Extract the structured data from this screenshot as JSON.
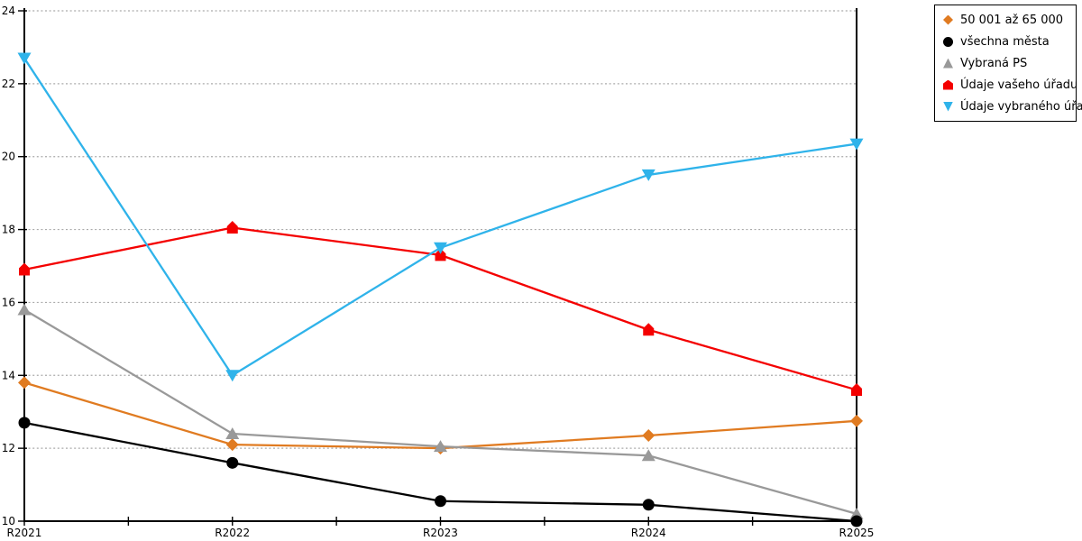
{
  "chart_data": {
    "type": "line",
    "title": "",
    "xlabel": "",
    "ylabel": "",
    "x_categories": [
      "R2021",
      "R2022",
      "R2023",
      "R2024",
      "R2025"
    ],
    "y_ticks": [
      10,
      12,
      14,
      16,
      18,
      20,
      22,
      24
    ],
    "ylim": [
      10,
      24
    ],
    "grid": "horizontal-dotted",
    "grid_color": "#aaaaaa",
    "axis_color": "#000000",
    "legend_position": "top-right-outside",
    "series": [
      {
        "name": "50 001 až 65 000",
        "color": "#e07b21",
        "marker": "diamond",
        "values": [
          13.8,
          12.1,
          12.0,
          12.35,
          12.75
        ]
      },
      {
        "name": "všechna města",
        "color": "#000000",
        "marker": "circle",
        "values": [
          12.7,
          11.6,
          10.55,
          10.45,
          10.0
        ]
      },
      {
        "name": "Vybraná PS",
        "color": "#999999",
        "marker": "triangle-up",
        "values": [
          15.8,
          12.4,
          12.05,
          11.8,
          10.2
        ]
      },
      {
        "name": "Údaje vašeho úřadu",
        "color": "#f40000",
        "marker": "house",
        "values": [
          16.9,
          18.05,
          17.3,
          15.25,
          13.6
        ]
      },
      {
        "name": "Údaje vybraného úřadu",
        "color": "#2fb3ea",
        "marker": "triangle-down",
        "values": [
          22.7,
          14.0,
          17.5,
          19.5,
          20.35
        ]
      }
    ],
    "draw_order": [
      0,
      2,
      1,
      3,
      4
    ]
  }
}
